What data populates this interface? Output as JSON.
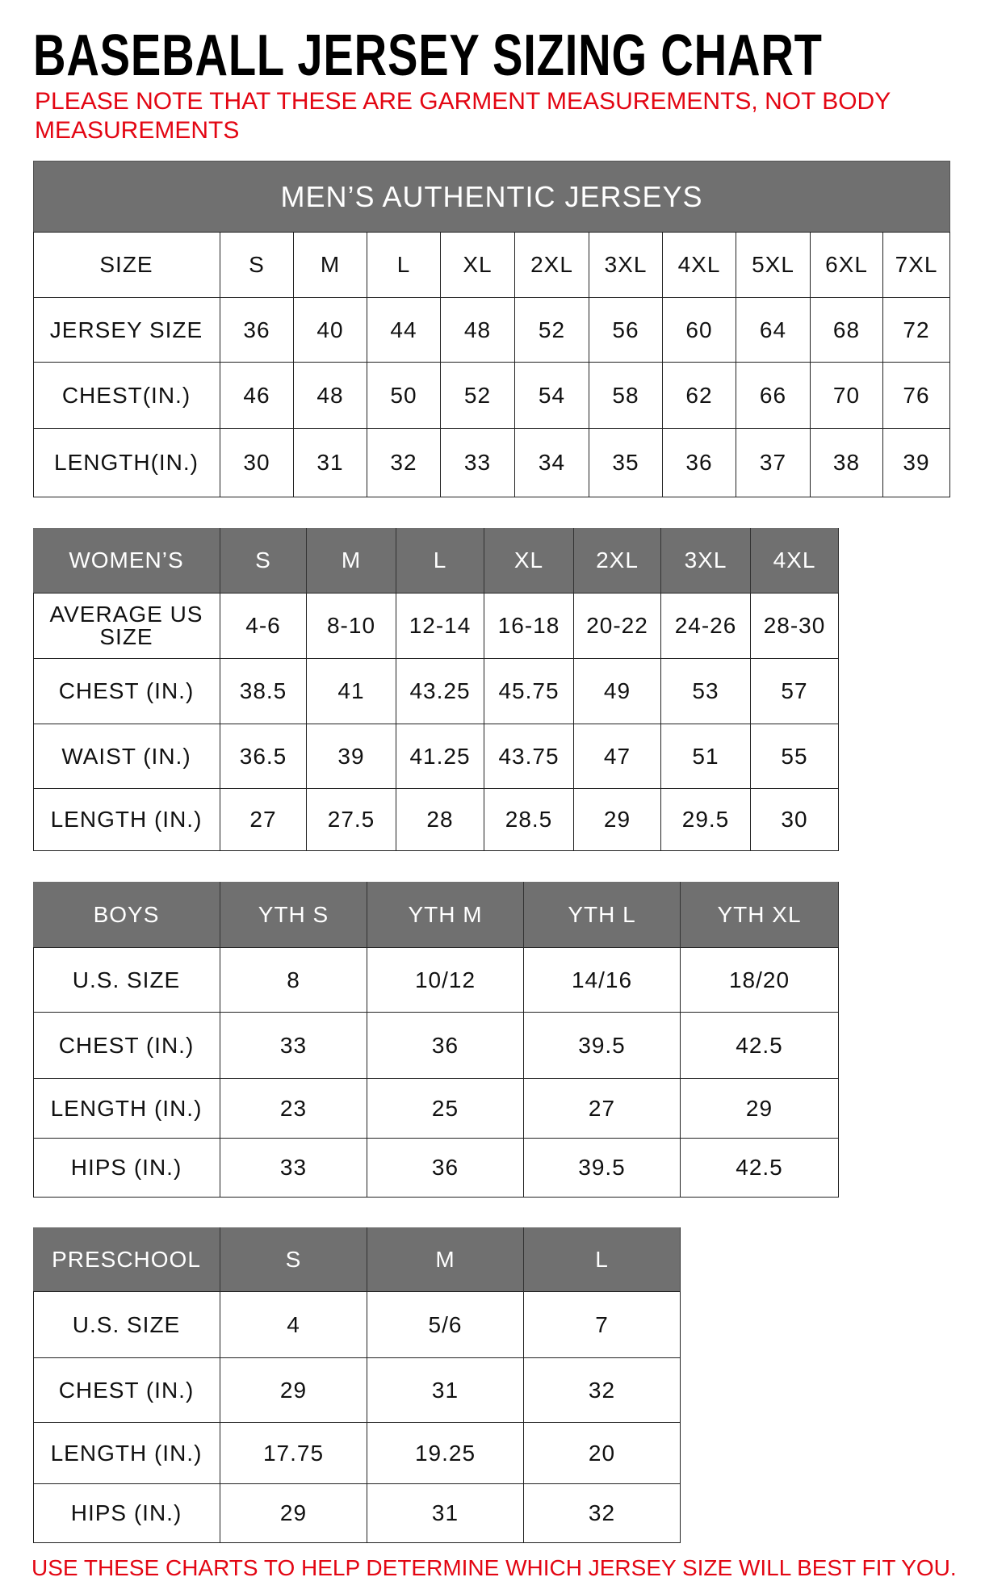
{
  "title": "BASEBALL JERSEY SIZING CHART",
  "note": "PLEASE NOTE THAT THESE ARE GARMENT MEASUREMENTS, NOT BODY MEASUREMENTS",
  "footer": "USE THESE CHARTS TO HELP DETERMINE WHICH JERSEY SIZE WILL BEST FIT YOU.",
  "colors": {
    "header_bg": "#707070",
    "note_red": "#e30613"
  },
  "mens": {
    "banner": "MEN’S AUTHENTIC JERSEYS",
    "rows": [
      [
        "SIZE",
        "S",
        "M",
        "L",
        "XL",
        "2XL",
        "3XL",
        "4XL",
        "5XL",
        "6XL",
        "7XL"
      ],
      [
        "JERSEY SIZE",
        "36",
        "40",
        "44",
        "48",
        "52",
        "56",
        "60",
        "64",
        "68",
        "72"
      ],
      [
        "CHEST(IN.)",
        "46",
        "48",
        "50",
        "52",
        "54",
        "58",
        "62",
        "66",
        "70",
        "76"
      ],
      [
        "LENGTH(IN.)",
        "30",
        "31",
        "32",
        "33",
        "34",
        "35",
        "36",
        "37",
        "38",
        "39"
      ]
    ]
  },
  "womens": {
    "rows": [
      [
        "WOMEN’S",
        "S",
        "M",
        "L",
        "XL",
        "2XL",
        "3XL",
        "4XL"
      ],
      [
        "AVERAGE US SIZE",
        "4-6",
        "8-10",
        "12-14",
        "16-18",
        "20-22",
        "24-26",
        "28-30"
      ],
      [
        "CHEST (IN.)",
        "38.5",
        "41",
        "43.25",
        "45.75",
        "49",
        "53",
        "57"
      ],
      [
        "WAIST (IN.)",
        "36.5",
        "39",
        "41.25",
        "43.75",
        "47",
        "51",
        "55"
      ],
      [
        "LENGTH (IN.)",
        "27",
        "27.5",
        "28",
        "28.5",
        "29",
        "29.5",
        "30"
      ]
    ]
  },
  "boys": {
    "rows": [
      [
        "BOYS",
        "YTH S",
        "YTH M",
        "YTH L",
        "YTH XL"
      ],
      [
        "U.S. SIZE",
        "8",
        "10/12",
        "14/16",
        "18/20"
      ],
      [
        "CHEST (IN.)",
        "33",
        "36",
        "39.5",
        "42.5"
      ],
      [
        "LENGTH (IN.)",
        "23",
        "25",
        "27",
        "29"
      ],
      [
        "HIPS (IN.)",
        "33",
        "36",
        "39.5",
        "42.5"
      ]
    ]
  },
  "preschool": {
    "rows": [
      [
        "PRESCHOOL",
        "S",
        "M",
        "L"
      ],
      [
        "U.S. SIZE",
        "4",
        "5/6",
        "7"
      ],
      [
        "CHEST (IN.)",
        "29",
        "31",
        "32"
      ],
      [
        "LENGTH (IN.)",
        "17.75",
        "19.25",
        "20"
      ],
      [
        "HIPS (IN.)",
        "29",
        "31",
        "32"
      ]
    ]
  }
}
